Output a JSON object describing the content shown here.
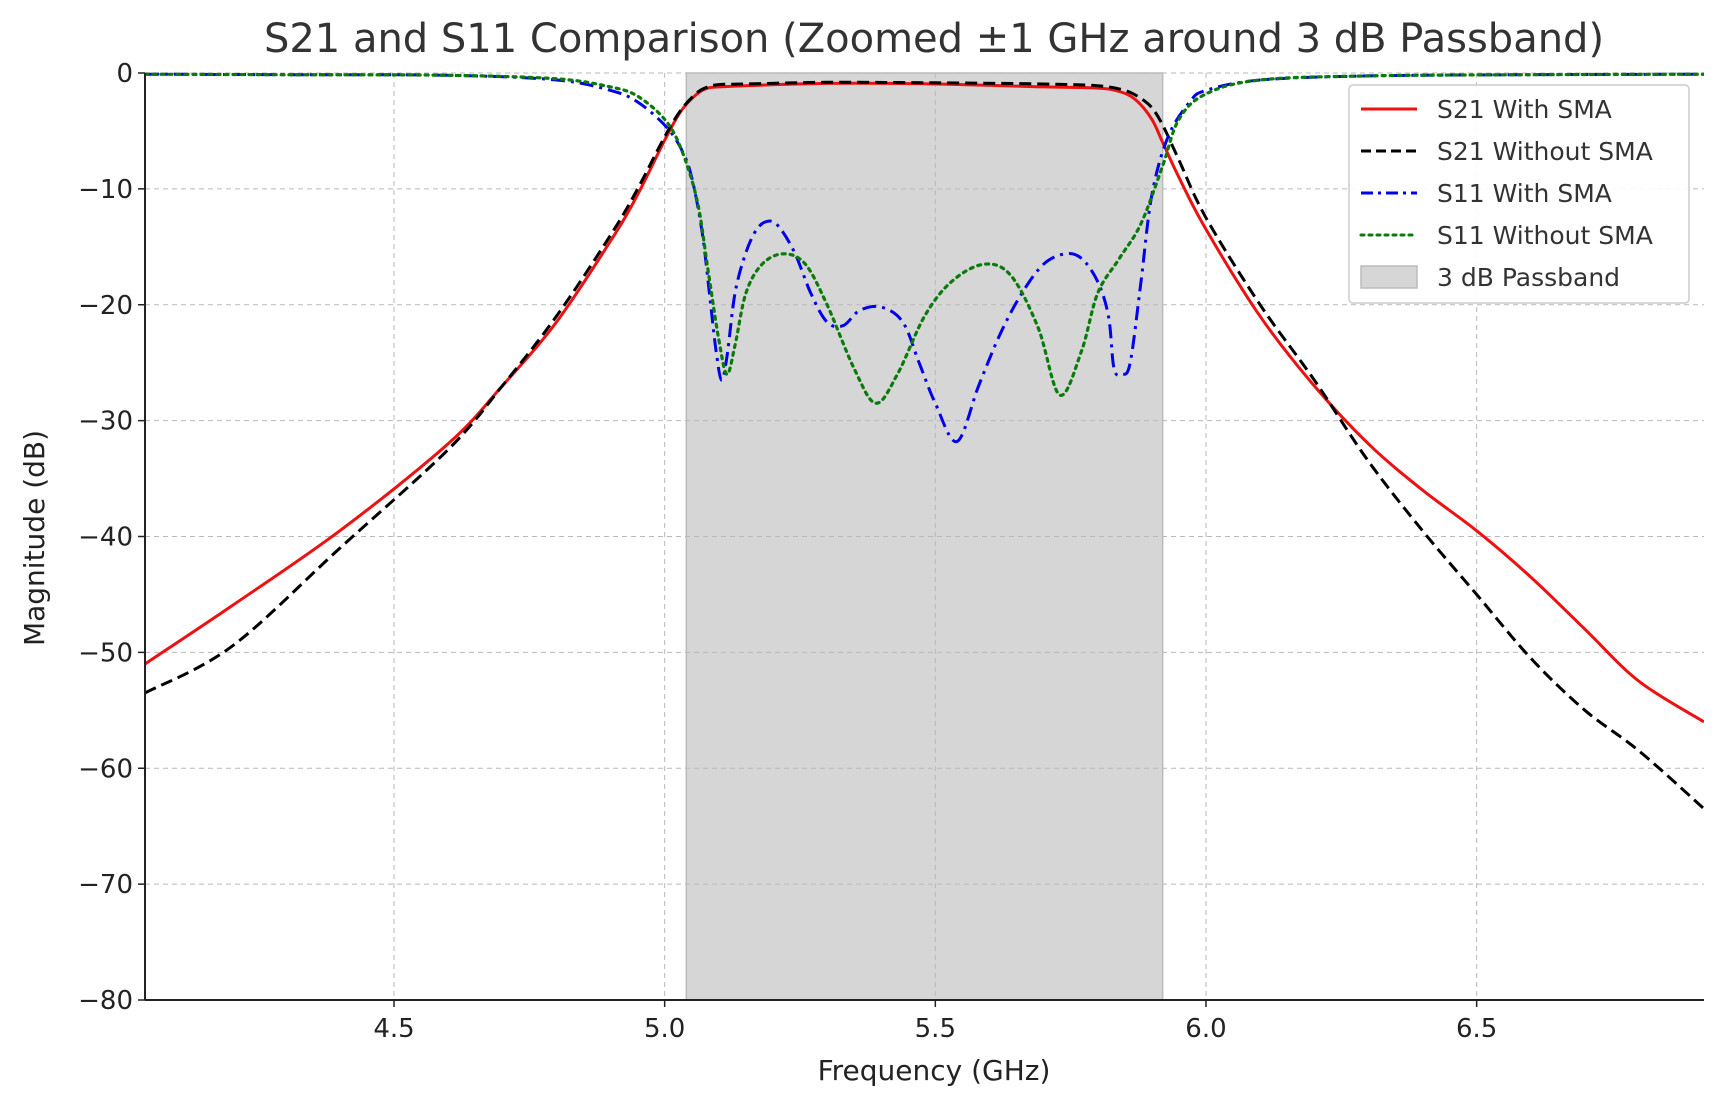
{
  "chart_data": {
    "type": "line",
    "title": "S21 and S11 Comparison (Zoomed ±1 GHz around 3 dB Passband)",
    "xlabel": "Frequency (GHz)",
    "ylabel": "Magnitude (dB)",
    "xlim": [
      4.04,
      6.92
    ],
    "ylim": [
      -80,
      0
    ],
    "xticks": [
      4.5,
      5.0,
      5.5,
      6.0,
      6.5
    ],
    "xtick_labels": [
      "4.5",
      "5.0",
      "5.5",
      "6.0",
      "6.5"
    ],
    "yticks": [
      0,
      -10,
      -20,
      -30,
      -40,
      -50,
      -60,
      -70,
      -80
    ],
    "ytick_labels": [
      "0",
      "−10",
      "−20",
      "−30",
      "−40",
      "−50",
      "−60",
      "−70",
      "−80"
    ],
    "grid": true,
    "legend_position": "top-right",
    "passband": {
      "name": "3 dB Passband",
      "x_start": 5.04,
      "x_end": 5.92,
      "color": "#d6d6d6"
    },
    "series": [
      {
        "name": "S21 With SMA",
        "color": "#ee1111",
        "style": "solid",
        "x": [
          4.04,
          4.2,
          4.4,
          4.6,
          4.7,
          4.8,
          4.9,
          4.95,
          5.0,
          5.03,
          5.06,
          5.08,
          5.1,
          5.15,
          5.3,
          5.5,
          5.7,
          5.8,
          5.84,
          5.87,
          5.9,
          5.92,
          5.95,
          6.0,
          6.1,
          6.2,
          6.3,
          6.4,
          6.5,
          6.6,
          6.7,
          6.8,
          6.92
        ],
        "y": [
          -51,
          -46,
          -39.5,
          -32,
          -27,
          -21.5,
          -14.5,
          -10.5,
          -5.8,
          -3.3,
          -1.8,
          -1.3,
          -1.2,
          -1.1,
          -0.9,
          -0.95,
          -1.2,
          -1.3,
          -1.6,
          -2.3,
          -4.0,
          -6.0,
          -9.0,
          -13.5,
          -21,
          -27,
          -32,
          -36,
          -39.5,
          -43.5,
          -48,
          -52.5,
          -56
        ]
      },
      {
        "name": "S21 Without SMA",
        "color": "#000000",
        "style": "dashed",
        "x": [
          4.04,
          4.2,
          4.4,
          4.6,
          4.7,
          4.8,
          4.9,
          4.95,
          5.0,
          5.03,
          5.06,
          5.08,
          5.1,
          5.15,
          5.3,
          5.5,
          5.7,
          5.8,
          5.85,
          5.88,
          5.9,
          5.92,
          5.95,
          6.0,
          6.1,
          6.2,
          6.3,
          6.4,
          6.5,
          6.6,
          6.7,
          6.8,
          6.92
        ],
        "y": [
          -53.5,
          -49.5,
          -41,
          -32.5,
          -27,
          -21,
          -14,
          -10,
          -5.5,
          -3.2,
          -1.7,
          -1.2,
          -1.0,
          -0.95,
          -0.8,
          -0.85,
          -0.95,
          -1.1,
          -1.5,
          -2.2,
          -3.0,
          -4.5,
          -7.5,
          -12.5,
          -20,
          -26.5,
          -33.5,
          -39.5,
          -45,
          -50.5,
          -55,
          -58.5,
          -63.5
        ]
      },
      {
        "name": "S11 With SMA",
        "color": "#0000ee",
        "style": "dashdot",
        "x": [
          4.04,
          4.3,
          4.6,
          4.8,
          4.9,
          4.95,
          5.0,
          5.03,
          5.05,
          5.07,
          5.085,
          5.095,
          5.105,
          5.115,
          5.13,
          5.15,
          5.17,
          5.19,
          5.21,
          5.24,
          5.27,
          5.3,
          5.33,
          5.36,
          5.4,
          5.44,
          5.47,
          5.5,
          5.54,
          5.58,
          5.62,
          5.66,
          5.7,
          5.74,
          5.77,
          5.8,
          5.82,
          5.83,
          5.845,
          5.86,
          5.88,
          5.9,
          5.93,
          5.97,
          6.0,
          6.1,
          6.3,
          6.6,
          6.92
        ],
        "y": [
          -0.1,
          -0.15,
          -0.2,
          -0.6,
          -1.5,
          -2.5,
          -4.5,
          -6.5,
          -9,
          -14,
          -20,
          -24,
          -26.5,
          -24.5,
          -19,
          -15.5,
          -13.5,
          -12.8,
          -13.2,
          -15.5,
          -19,
          -21.5,
          -21.8,
          -20.5,
          -20.2,
          -21.5,
          -25,
          -28.5,
          -31.8,
          -27,
          -22.5,
          -19,
          -16.5,
          -15.6,
          -16,
          -18,
          -21,
          -25.5,
          -26,
          -25,
          -18,
          -10.5,
          -5.5,
          -2.5,
          -1.5,
          -0.6,
          -0.25,
          -0.15,
          -0.1
        ]
      },
      {
        "name": "S11 Without SMA",
        "color": "#0a7a0a",
        "style": "dotted",
        "x": [
          4.04,
          4.3,
          4.6,
          4.8,
          4.9,
          4.95,
          5.0,
          5.03,
          5.06,
          5.08,
          5.1,
          5.115,
          5.13,
          5.15,
          5.18,
          5.22,
          5.26,
          5.3,
          5.35,
          5.39,
          5.43,
          5.48,
          5.53,
          5.59,
          5.64,
          5.69,
          5.73,
          5.77,
          5.8,
          5.84,
          5.88,
          5.92,
          5.95,
          6.0,
          6.1,
          6.3,
          6.6,
          6.92
        ],
        "y": [
          -0.1,
          -0.15,
          -0.2,
          -0.5,
          -1.2,
          -2.0,
          -4.0,
          -6.5,
          -11,
          -17,
          -23,
          -26,
          -23.5,
          -19,
          -16.5,
          -15.6,
          -16.5,
          -20,
          -25.5,
          -28.5,
          -26,
          -21,
          -18,
          -16.5,
          -17.5,
          -22,
          -27.8,
          -24,
          -19,
          -16,
          -13,
          -8,
          -4,
          -1.8,
          -0.6,
          -0.25,
          -0.15,
          -0.1
        ]
      }
    ]
  }
}
